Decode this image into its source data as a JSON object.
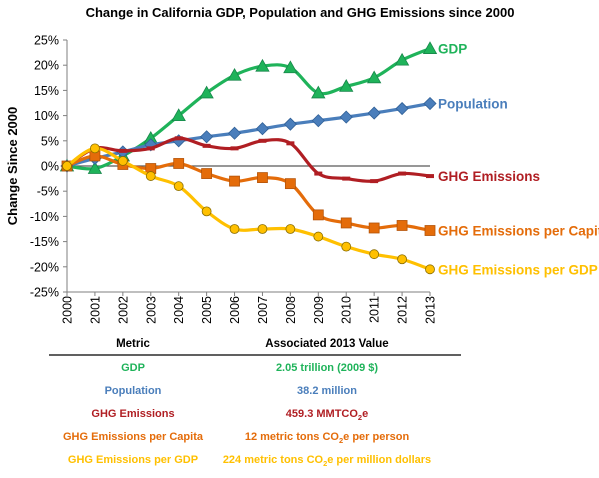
{
  "chart_data": {
    "type": "line",
    "title": "Change in California GDP, Population and GHG Emissions since 2000",
    "xlabel": "",
    "ylabel": "Change Since 2000",
    "x": [
      "2000",
      "2001",
      "2002",
      "2003",
      "2004",
      "2005",
      "2006",
      "2007",
      "2008",
      "2009",
      "2010",
      "2011",
      "2012",
      "2013"
    ],
    "ylim": [
      -25,
      25
    ],
    "yticks": [
      25,
      20,
      15,
      10,
      5,
      0,
      -5,
      -10,
      -15,
      -20,
      -25
    ],
    "ytick_labels": [
      "25%",
      "20%",
      "15%",
      "10%",
      "5%",
      "0%",
      "-5%",
      "-10%",
      "-15%",
      "-20%",
      "-25%"
    ],
    "grid": false,
    "legend": "direct labels at line ends (right)",
    "series": [
      {
        "name": "GDP",
        "color": "#1fb35a",
        "marker": "triangle",
        "values": [
          0,
          -0.5,
          2.0,
          5.5,
          10.0,
          14.5,
          18.0,
          19.8,
          19.5,
          14.5,
          15.8,
          17.5,
          21.0,
          23.3
        ]
      },
      {
        "name": "Population",
        "color": "#4a7ebb",
        "marker": "diamond",
        "values": [
          0,
          1.5,
          2.8,
          4.2,
          5.0,
          5.8,
          6.5,
          7.4,
          8.3,
          9.0,
          9.7,
          10.5,
          11.4,
          12.4
        ]
      },
      {
        "name": "GHG Emissions",
        "color": "#b01e23",
        "marker": "dash",
        "values": [
          0,
          3.5,
          3.0,
          3.5,
          5.5,
          4.0,
          3.5,
          5.0,
          4.5,
          -1.5,
          -2.5,
          -3.0,
          -1.5,
          -2.0
        ]
      },
      {
        "name": "GHG Emissions per Capita",
        "color": "#e46c0a",
        "marker": "square",
        "values": [
          0,
          2.0,
          0.3,
          -0.5,
          0.5,
          -1.5,
          -3.0,
          -2.3,
          -3.5,
          -9.7,
          -11.3,
          -12.3,
          -11.8,
          -12.8
        ]
      },
      {
        "name": "GHG Emissions per GDP",
        "color": "#ffc000",
        "marker": "circle",
        "values": [
          0,
          3.5,
          1.0,
          -2.0,
          -4.0,
          -9.0,
          -12.5,
          -12.5,
          -12.5,
          -14.0,
          -16.0,
          -17.5,
          -18.5,
          -20.5
        ]
      }
    ]
  },
  "table": {
    "header_metric": "Metric",
    "header_value": "Associated 2013 Value",
    "rows": [
      {
        "metric": "GDP",
        "color": "#1fb35a",
        "value_pre": "2.05 trillion (2009 $)",
        "sub": "",
        "value_post": ""
      },
      {
        "metric": "Population",
        "color": "#4a7ebb",
        "value_pre": "38.2 million",
        "sub": "",
        "value_post": ""
      },
      {
        "metric": "GHG Emissions",
        "color": "#b01e23",
        "value_pre": "459.3 MMTCO",
        "sub": "2",
        "value_post": "e"
      },
      {
        "metric": "GHG Emissions per Capita",
        "color": "#e46c0a",
        "value_pre": "12 metric tons CO",
        "sub": "2",
        "value_post": "e per person"
      },
      {
        "metric": "GHG Emissions per GDP",
        "color": "#ffc000",
        "value_pre": "224 metric tons CO",
        "sub": "2",
        "value_post": "e per million dollars"
      }
    ]
  }
}
